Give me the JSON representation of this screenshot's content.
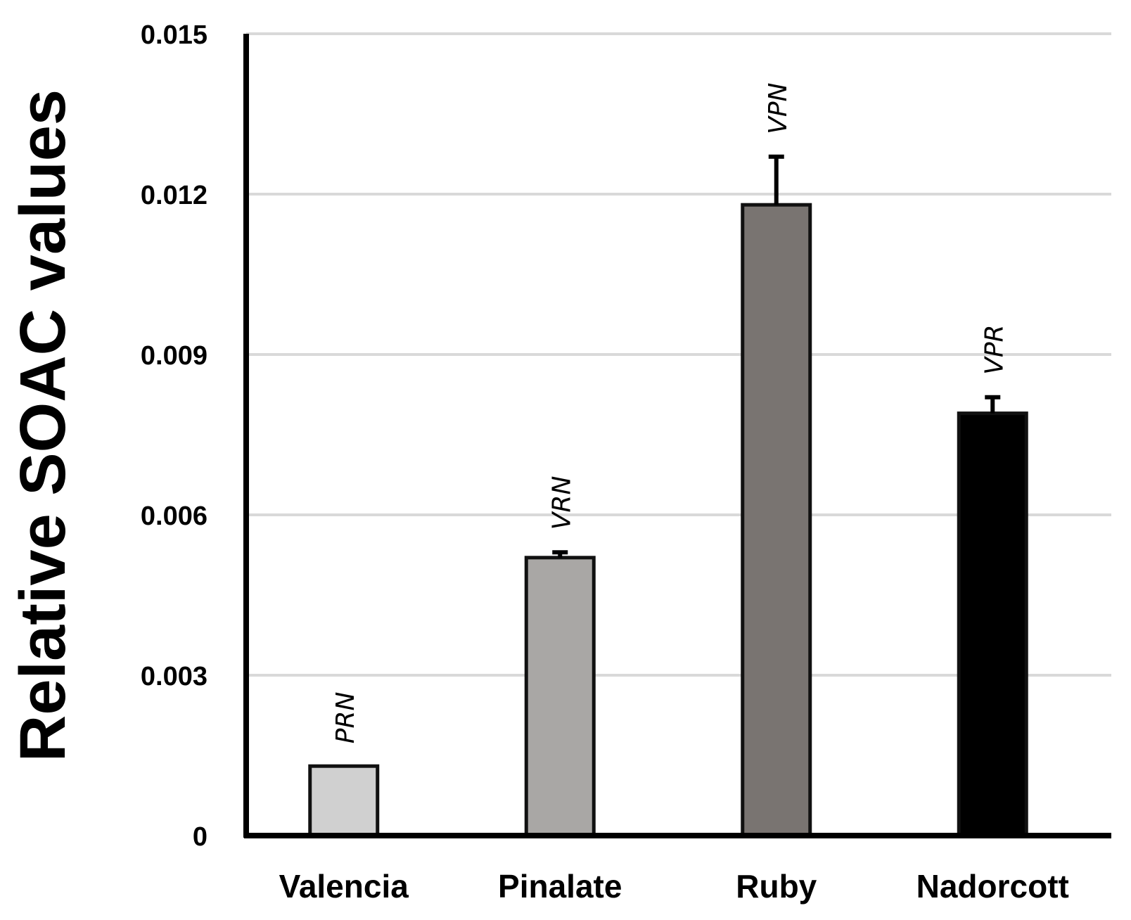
{
  "chart_data": {
    "type": "bar",
    "title": "",
    "xlabel": "",
    "ylabel": "Relative SOAC values",
    "ylim": [
      0,
      0.015
    ],
    "yticks": [
      0,
      0.003,
      0.006,
      0.009,
      0.012,
      0.015
    ],
    "ytick_labels": [
      "0",
      "0.003",
      "0.006",
      "0.009",
      "0.012",
      "0.015"
    ],
    "grid": true,
    "categories": [
      "Valencia",
      "Pinalate",
      "Ruby",
      "Nadorcott"
    ],
    "values": [
      0.0013,
      0.0052,
      0.0118,
      0.0079
    ],
    "errors": [
      0.0,
      0.0001,
      0.0009,
      0.0003
    ],
    "annotations": [
      "PRN",
      "VRN",
      "VPN",
      "VPR"
    ],
    "colors": [
      "#d0d0d0",
      "#a9a7a5",
      "#797471",
      "#000000"
    ]
  }
}
